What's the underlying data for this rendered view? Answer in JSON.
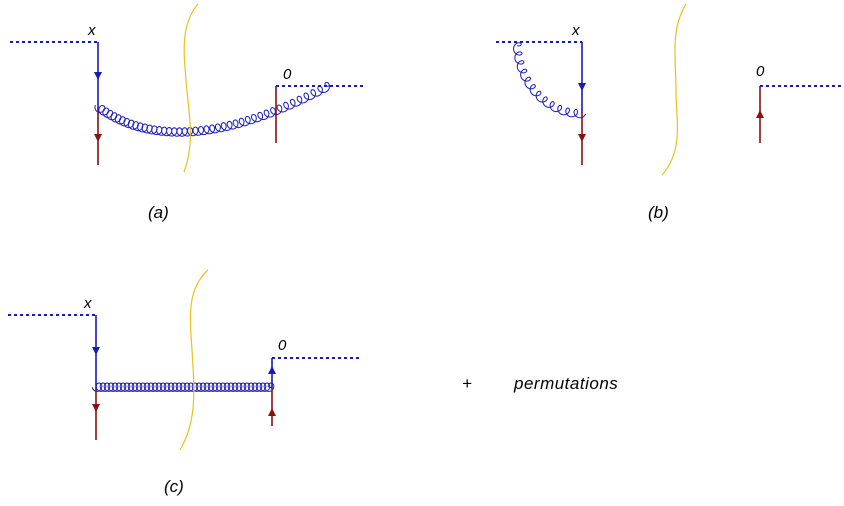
{
  "colors": {
    "wilson_line": "#1a1ab8",
    "quark_line": "#1a1ab8",
    "external_quark": "#8b1010",
    "gluon": "#1a1ab8",
    "final_state_cut": "#e8c21a"
  },
  "diagram_a": {
    "label_x": "x",
    "label_0": "0",
    "caption": "(a)"
  },
  "diagram_b": {
    "label_x": "x",
    "label_0": "0",
    "caption": "(b)"
  },
  "diagram_c": {
    "label_x": "x",
    "label_0": "0",
    "caption": "(c)"
  },
  "plus": "+",
  "permutations": "permutations"
}
